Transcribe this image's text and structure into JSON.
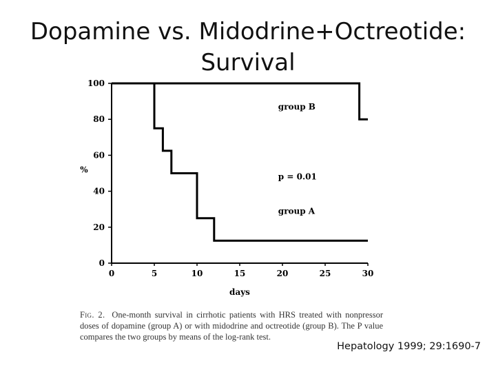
{
  "slide": {
    "title_line1": "Dopamine vs. Midodrine+Octreotide:",
    "title_line2": "Survival"
  },
  "chart_data": {
    "type": "line",
    "step": true,
    "xlabel": "days",
    "ylabel": "%",
    "xlim": [
      0,
      30
    ],
    "ylim": [
      0,
      100
    ],
    "x_ticks": [
      0,
      5,
      10,
      15,
      20,
      25,
      30
    ],
    "y_ticks": [
      0,
      20,
      40,
      60,
      80,
      100
    ],
    "grid": false,
    "line_color": "#000000",
    "series": [
      {
        "name": "group B",
        "points": [
          [
            0,
            100
          ],
          [
            29,
            100
          ],
          [
            29,
            80
          ],
          [
            30,
            80
          ]
        ]
      },
      {
        "name": "group A",
        "points": [
          [
            0,
            100
          ],
          [
            5,
            100
          ],
          [
            5,
            75
          ],
          [
            6,
            75
          ],
          [
            6,
            62.5
          ],
          [
            7,
            62.5
          ],
          [
            7,
            50
          ],
          [
            10,
            50
          ],
          [
            10,
            25
          ],
          [
            12,
            25
          ],
          [
            12,
            12.5
          ],
          [
            30,
            12.5
          ]
        ]
      }
    ],
    "annotations": [
      {
        "text": "group B",
        "x": 19.5,
        "y": 87
      },
      {
        "text": "p = 0.01",
        "x": 19.5,
        "y": 48
      },
      {
        "text": "group A",
        "x": 19.5,
        "y": 29
      }
    ]
  },
  "caption": {
    "heading": "Fig. 2.",
    "text": "One-month survival in cirrhotic patients with HRS treated with nonpressor doses of dopamine (group A) or with midodrine and octreotide (group B). The P value compares the two groups by means of the log-rank test."
  },
  "citation": "Hepatology 1999; 29:1690-7"
}
